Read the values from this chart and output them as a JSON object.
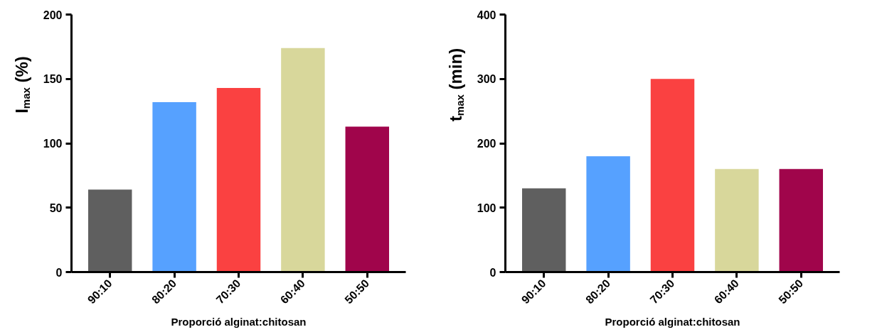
{
  "chart_data": [
    {
      "type": "bar",
      "categories": [
        "90:10",
        "80:20",
        "70:30",
        "60:40",
        "50:50"
      ],
      "values": [
        64,
        132,
        143,
        174,
        113
      ],
      "colors": [
        "#5f5f5f",
        "#56a1ff",
        "#fa4141",
        "#d8d79b",
        "#a0054b"
      ],
      "ylim": [
        0,
        200
      ],
      "yticks": [
        0,
        50,
        100,
        150,
        200
      ],
      "ylabel": "I$_{max}$ (%)",
      "xlabel": "Proporció alginat:chitosan",
      "grid": false
    },
    {
      "type": "bar",
      "categories": [
        "90:10",
        "80:20",
        "70:30",
        "60:40",
        "50:50"
      ],
      "values": [
        130,
        180,
        300,
        160,
        160
      ],
      "colors": [
        "#5f5f5f",
        "#56a1ff",
        "#fa4141",
        "#d8d79b",
        "#a0054b"
      ],
      "ylim": [
        0,
        400
      ],
      "yticks": [
        0,
        100,
        200,
        300,
        400
      ],
      "ylabel": "t$_{max}$ (min)",
      "xlabel": "Proporció alginat:chitosan",
      "grid": false
    }
  ]
}
